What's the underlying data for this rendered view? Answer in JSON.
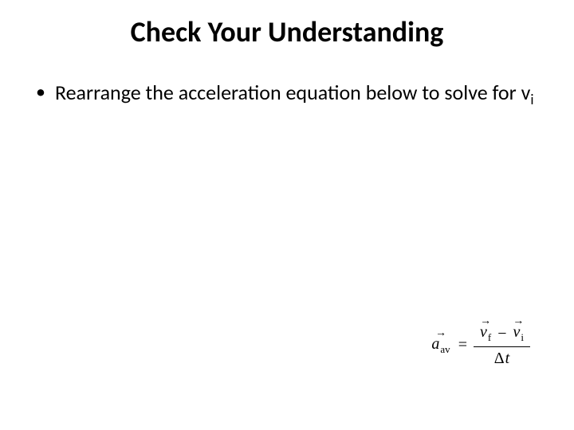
{
  "slide": {
    "title": "Check Your Understanding",
    "title_fontsize": 36,
    "title_fontweight": "bold",
    "title_color": "#000000",
    "background_color": "#ffffff"
  },
  "bullet": {
    "marker": "•",
    "text_part1": "Rearrange the acceleration equation below to solve for v",
    "text_sub": "i",
    "fontsize": 26,
    "color": "#000000"
  },
  "equation": {
    "lhs_var": "a",
    "lhs_sub": "av",
    "equals": "=",
    "num_var1": "v",
    "num_sub1": "f",
    "minus": "−",
    "num_var2": "v",
    "num_sub2": "i",
    "den_delta": "Δ",
    "den_var": "t",
    "fontsize": 20,
    "color": "#000000",
    "font_family": "Times New Roman"
  }
}
